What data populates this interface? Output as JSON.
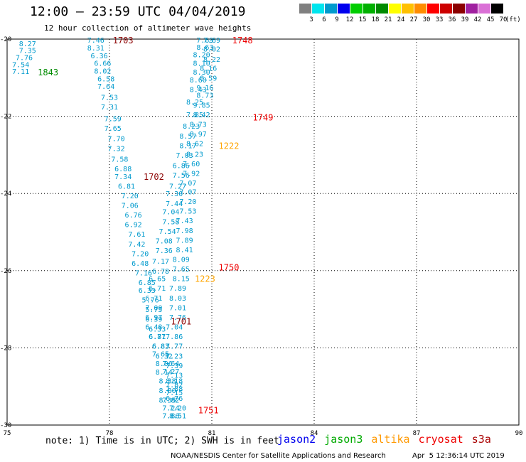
{
  "header": {
    "title": "12:00 — 23:59 UTC 04/04/2019",
    "subtitle": "12 hour collection of altimeter wave heights"
  },
  "legend": {
    "unit": "(ft)",
    "levels": [
      {
        "label": "3",
        "color": "#808080"
      },
      {
        "label": "6",
        "color": "#00e5ee"
      },
      {
        "label": "9",
        "color": "#009acd"
      },
      {
        "label": "12",
        "color": "#0000ee"
      },
      {
        "label": "15",
        "color": "#00cd00"
      },
      {
        "label": "18",
        "color": "#00b000"
      },
      {
        "label": "21",
        "color": "#008b00"
      },
      {
        "label": "24",
        "color": "#ffff00"
      },
      {
        "label": "27",
        "color": "#ffc000"
      },
      {
        "label": "30",
        "color": "#ff8c00"
      },
      {
        "label": "33",
        "color": "#ff0000"
      },
      {
        "label": "36",
        "color": "#cd0000"
      },
      {
        "label": "39",
        "color": "#8b0000"
      },
      {
        "label": "42",
        "color": "#a020a0"
      },
      {
        "label": "45",
        "color": "#da70d6"
      },
      {
        "label": "70",
        "color": "#000000"
      }
    ]
  },
  "footer": {
    "note": "note: 1) Time is in UTC; 2) SWH is in feet",
    "satellites": [
      {
        "name": "jason2",
        "color": "#0000ee"
      },
      {
        "name": "jason3",
        "color": "#00aa00"
      },
      {
        "name": "altika",
        "color": "#ff9900"
      },
      {
        "name": "cryosat",
        "color": "#ee0000"
      },
      {
        "name": "s3a",
        "color": "#aa0000"
      }
    ],
    "credit": "NOAA/NESDIS Center for Satellite Applications and Research",
    "timestamp": "Apr  5 12:36:14 UTC 2019"
  },
  "chart_data": {
    "type": "scatter",
    "title": "12 hour collection of altimeter wave heights",
    "xlim": [
      75,
      90
    ],
    "ylim": [
      -30,
      -20
    ],
    "x_ticks": [
      75,
      78,
      81,
      84,
      87,
      90
    ],
    "x_tick_labels": [
      "75",
      "78",
      "81",
      "84",
      "87",
      "90"
    ],
    "y_ticks": [
      -20,
      -22,
      -24,
      -26,
      -28,
      -30
    ],
    "y_tick_labels": [
      "-20",
      "-22",
      "-24",
      "-26",
      "-28",
      "-30"
    ],
    "grid": true,
    "point_color": "#009acd",
    "track_values": [
      {
        "x": 75.6,
        "y": -20.11,
        "v": "8.27"
      },
      {
        "x": 75.6,
        "y": -20.29,
        "v": "7.35"
      },
      {
        "x": 75.5,
        "y": -20.47,
        "v": "7.76"
      },
      {
        "x": 75.4,
        "y": -20.65,
        "v": "7.54"
      },
      {
        "x": 75.4,
        "y": -20.83,
        "v": "7.11"
      },
      {
        "x": 77.6,
        "y": -20.02,
        "v": "7.46"
      },
      {
        "x": 77.6,
        "y": -20.22,
        "v": "8.31"
      },
      {
        "x": 77.7,
        "y": -20.42,
        "v": "6.36"
      },
      {
        "x": 77.8,
        "y": -20.62,
        "v": "6.66"
      },
      {
        "x": 77.8,
        "y": -20.82,
        "v": "8.02"
      },
      {
        "x": 77.9,
        "y": -21.02,
        "v": "6.58"
      },
      {
        "x": 77.9,
        "y": -21.22,
        "v": "7.64"
      },
      {
        "x": 78.0,
        "y": -21.5,
        "v": "7.53"
      },
      {
        "x": 78.0,
        "y": -21.75,
        "v": "7.31"
      },
      {
        "x": 78.1,
        "y": -22.05,
        "v": "7.59"
      },
      {
        "x": 78.1,
        "y": -22.3,
        "v": "7.65"
      },
      {
        "x": 78.2,
        "y": -22.57,
        "v": "7.70"
      },
      {
        "x": 78.2,
        "y": -22.83,
        "v": "7.32"
      },
      {
        "x": 78.3,
        "y": -23.1,
        "v": "7.58"
      },
      {
        "x": 78.4,
        "y": -23.35,
        "v": "6.88"
      },
      {
        "x": 78.4,
        "y": -23.55,
        "v": "7.34"
      },
      {
        "x": 78.5,
        "y": -23.8,
        "v": "6.81"
      },
      {
        "x": 78.6,
        "y": -24.05,
        "v": "7.20"
      },
      {
        "x": 78.6,
        "y": -24.3,
        "v": "7.06"
      },
      {
        "x": 78.7,
        "y": -24.55,
        "v": "6.76"
      },
      {
        "x": 78.7,
        "y": -24.8,
        "v": "6.92"
      },
      {
        "x": 78.8,
        "y": -25.05,
        "v": "7.61"
      },
      {
        "x": 78.8,
        "y": -25.3,
        "v": "7.42"
      },
      {
        "x": 78.9,
        "y": -25.55,
        "v": "7.20"
      },
      {
        "x": 78.9,
        "y": -25.8,
        "v": "6.48"
      },
      {
        "x": 79.0,
        "y": -26.05,
        "v": "7.16"
      },
      {
        "x": 79.1,
        "y": -26.3,
        "v": "6.85"
      },
      {
        "x": 79.1,
        "y": -26.5,
        "v": "6.33"
      },
      {
        "x": 79.2,
        "y": -26.75,
        "v": "5.76"
      },
      {
        "x": 79.3,
        "y": -27.0,
        "v": "5.75"
      },
      {
        "x": 79.3,
        "y": -27.25,
        "v": "6.39"
      },
      {
        "x": 79.4,
        "y": -27.5,
        "v": "6.33"
      },
      {
        "x": 79.4,
        "y": -27.7,
        "v": "6.87"
      },
      {
        "x": 79.5,
        "y": -27.95,
        "v": "6.83"
      },
      {
        "x": 79.5,
        "y": -28.15,
        "v": "7.65"
      },
      {
        "x": 79.6,
        "y": -28.4,
        "v": "8.06"
      },
      {
        "x": 79.6,
        "y": -28.62,
        "v": "8.14"
      },
      {
        "x": 79.7,
        "y": -28.85,
        "v": "8.38"
      },
      {
        "x": 79.7,
        "y": -29.1,
        "v": "8.80"
      },
      {
        "x": 79.7,
        "y": -29.35,
        "v": "8.35"
      },
      {
        "x": 80.8,
        "y": -20.02,
        "v": "7.69"
      },
      {
        "x": 80.8,
        "y": -20.2,
        "v": "8.63"
      },
      {
        "x": 80.7,
        "y": -20.4,
        "v": "8.20"
      },
      {
        "x": 80.7,
        "y": -20.62,
        "v": "8.10"
      },
      {
        "x": 80.7,
        "y": -20.85,
        "v": "8.30"
      },
      {
        "x": 80.6,
        "y": -21.05,
        "v": "8.60"
      },
      {
        "x": 80.6,
        "y": -21.3,
        "v": "8.43"
      },
      {
        "x": 80.5,
        "y": -21.62,
        "v": "8.25"
      },
      {
        "x": 80.5,
        "y": -21.95,
        "v": "7.85"
      },
      {
        "x": 80.4,
        "y": -22.25,
        "v": "8.23"
      },
      {
        "x": 80.3,
        "y": -22.5,
        "v": "8.57"
      },
      {
        "x": 80.3,
        "y": -22.75,
        "v": "8.17"
      },
      {
        "x": 80.2,
        "y": -23.0,
        "v": "7.03"
      },
      {
        "x": 80.1,
        "y": -23.27,
        "v": "6.86"
      },
      {
        "x": 80.1,
        "y": -23.52,
        "v": "7.56"
      },
      {
        "x": 80.0,
        "y": -23.8,
        "v": "7.27"
      },
      {
        "x": 79.9,
        "y": -24.0,
        "v": "7.30"
      },
      {
        "x": 79.9,
        "y": -24.25,
        "v": "7.44"
      },
      {
        "x": 79.8,
        "y": -24.47,
        "v": "7.04"
      },
      {
        "x": 79.8,
        "y": -24.72,
        "v": "7.58"
      },
      {
        "x": 79.7,
        "y": -24.97,
        "v": "7.54"
      },
      {
        "x": 79.6,
        "y": -25.22,
        "v": "7.08"
      },
      {
        "x": 79.6,
        "y": -25.47,
        "v": "7.36"
      },
      {
        "x": 79.5,
        "y": -25.75,
        "v": "7.17"
      },
      {
        "x": 79.5,
        "y": -26.0,
        "v": "6.78"
      },
      {
        "x": 79.4,
        "y": -26.2,
        "v": "6.65"
      },
      {
        "x": 79.4,
        "y": -26.45,
        "v": "6.71"
      },
      {
        "x": 79.3,
        "y": -26.7,
        "v": "6.71"
      },
      {
        "x": 79.3,
        "y": -26.95,
        "v": "7.00"
      },
      {
        "x": 79.3,
        "y": -27.2,
        "v": "6.97"
      },
      {
        "x": 79.3,
        "y": -27.45,
        "v": "6.48"
      },
      {
        "x": 79.4,
        "y": -27.7,
        "v": "6.71"
      },
      {
        "x": 79.5,
        "y": -27.95,
        "v": "6.83"
      },
      {
        "x": 79.6,
        "y": -28.2,
        "v": "6.32"
      },
      {
        "x": 79.8,
        "y": -28.4,
        "v": "7.64"
      },
      {
        "x": 79.8,
        "y": -28.6,
        "v": "7.27"
      },
      {
        "x": 79.9,
        "y": -28.85,
        "v": "8.18"
      },
      {
        "x": 79.9,
        "y": -29.05,
        "v": "7.88"
      },
      {
        "x": 79.9,
        "y": -29.3,
        "v": "6.76"
      },
      {
        "x": 80.0,
        "y": -29.55,
        "v": "7.20"
      },
      {
        "x": 80.0,
        "y": -29.75,
        "v": "8.51"
      },
      {
        "x": 81.0,
        "y": -20.02,
        "v": "7.69"
      },
      {
        "x": 81.0,
        "y": -20.25,
        "v": "8.02"
      },
      {
        "x": 81.0,
        "y": -20.52,
        "v": "8.22"
      },
      {
        "x": 80.9,
        "y": -20.75,
        "v": "8.16"
      },
      {
        "x": 80.9,
        "y": -21.0,
        "v": "8.59"
      },
      {
        "x": 80.8,
        "y": -21.25,
        "v": "9.16"
      },
      {
        "x": 80.8,
        "y": -21.45,
        "v": "8.73"
      },
      {
        "x": 80.7,
        "y": -21.7,
        "v": "9.85"
      },
      {
        "x": 80.7,
        "y": -21.95,
        "v": "8.42"
      },
      {
        "x": 80.6,
        "y": -22.2,
        "v": "8.73"
      },
      {
        "x": 80.6,
        "y": -22.45,
        "v": "8.97"
      },
      {
        "x": 80.5,
        "y": -22.7,
        "v": "8.62"
      },
      {
        "x": 80.5,
        "y": -22.97,
        "v": "8.23"
      },
      {
        "x": 80.4,
        "y": -23.22,
        "v": "7.60"
      },
      {
        "x": 80.4,
        "y": -23.47,
        "v": "7.92"
      },
      {
        "x": 80.3,
        "y": -23.72,
        "v": "7.07"
      },
      {
        "x": 80.3,
        "y": -23.95,
        "v": "7.07"
      },
      {
        "x": 80.3,
        "y": -24.2,
        "v": "7.20"
      },
      {
        "x": 80.3,
        "y": -24.45,
        "v": "7.53"
      },
      {
        "x": 80.2,
        "y": -24.7,
        "v": "7.43"
      },
      {
        "x": 80.2,
        "y": -24.95,
        "v": "7.98"
      },
      {
        "x": 80.2,
        "y": -25.2,
        "v": "7.89"
      },
      {
        "x": 80.2,
        "y": -25.45,
        "v": "8.41"
      },
      {
        "x": 80.1,
        "y": -25.7,
        "v": "8.09"
      },
      {
        "x": 80.1,
        "y": -25.95,
        "v": "7.65"
      },
      {
        "x": 80.1,
        "y": -26.2,
        "v": "8.15"
      },
      {
        "x": 80.0,
        "y": -26.45,
        "v": "7.89"
      },
      {
        "x": 80.0,
        "y": -26.7,
        "v": "8.03"
      },
      {
        "x": 80.0,
        "y": -26.95,
        "v": "7.01"
      },
      {
        "x": 80.0,
        "y": -27.2,
        "v": "7.76"
      },
      {
        "x": 79.9,
        "y": -27.45,
        "v": "7.04"
      },
      {
        "x": 79.9,
        "y": -27.7,
        "v": "7.86"
      },
      {
        "x": 79.9,
        "y": -27.95,
        "v": "7.77"
      },
      {
        "x": 79.9,
        "y": -28.2,
        "v": "7.23"
      },
      {
        "x": 79.9,
        "y": -28.45,
        "v": "7.39"
      },
      {
        "x": 79.9,
        "y": -28.7,
        "v": "7.13"
      },
      {
        "x": 79.9,
        "y": -28.95,
        "v": "7.82"
      },
      {
        "x": 79.9,
        "y": -29.15,
        "v": "7.15"
      },
      {
        "x": 79.8,
        "y": -29.35,
        "v": "7.82"
      },
      {
        "x": 79.8,
        "y": -29.55,
        "v": "7.24"
      },
      {
        "x": 79.8,
        "y": -29.75,
        "v": "7.86"
      }
    ],
    "pass_labels": [
      {
        "x": 76.2,
        "y": -20.85,
        "label": "1843",
        "color": "#008b00"
      },
      {
        "x": 78.4,
        "y": -20.02,
        "label": "1703",
        "color": "#8b0000"
      },
      {
        "x": 81.9,
        "y": -20.02,
        "label": "1748",
        "color": "#ee0000"
      },
      {
        "x": 82.5,
        "y": -22.02,
        "label": "1749",
        "color": "#ee0000"
      },
      {
        "x": 81.5,
        "y": -22.75,
        "label": "1222",
        "color": "#ffa500"
      },
      {
        "x": 79.3,
        "y": -23.55,
        "label": "1702",
        "color": "#8b0000"
      },
      {
        "x": 81.5,
        "y": -25.9,
        "label": "1750",
        "color": "#ee0000"
      },
      {
        "x": 80.8,
        "y": -26.2,
        "label": "1223",
        "color": "#ffa500"
      },
      {
        "x": 80.1,
        "y": -27.3,
        "label": "1701",
        "color": "#8b0000"
      },
      {
        "x": 80.9,
        "y": -29.6,
        "label": "1751",
        "color": "#ee0000"
      }
    ]
  }
}
